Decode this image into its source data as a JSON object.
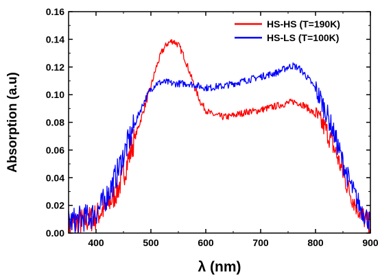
{
  "chart_data": {
    "type": "line",
    "title": "",
    "xlabel": "λ (nm)",
    "ylabel": "Absorption (a.u)",
    "xlim": [
      350,
      900
    ],
    "ylim": [
      0.0,
      0.16
    ],
    "x_ticks": [
      "400",
      "500",
      "600",
      "700",
      "800",
      "900"
    ],
    "y_ticks": [
      "0.00",
      "0.02",
      "0.04",
      "0.06",
      "0.08",
      "0.10",
      "0.12",
      "0.14",
      "0.16"
    ],
    "grid": false,
    "legend_position": "top-right",
    "series": [
      {
        "name": "HS-HS (T=190K)",
        "color": "#ff0000",
        "x": [
          350,
          370,
          390,
          400,
          410,
          420,
          430,
          440,
          450,
          460,
          470,
          480,
          490,
          500,
          510,
          520,
          530,
          540,
          550,
          560,
          570,
          580,
          590,
          600,
          610,
          620,
          630,
          640,
          650,
          660,
          670,
          680,
          690,
          700,
          710,
          720,
          730,
          740,
          750,
          760,
          770,
          780,
          790,
          800,
          810,
          820,
          830,
          840,
          850,
          860,
          870,
          880,
          890,
          900
        ],
        "y": [
          0.005,
          0.008,
          0.01,
          0.012,
          0.016,
          0.02,
          0.025,
          0.032,
          0.042,
          0.055,
          0.068,
          0.08,
          0.093,
          0.106,
          0.12,
          0.131,
          0.137,
          0.139,
          0.136,
          0.128,
          0.117,
          0.105,
          0.095,
          0.089,
          0.086,
          0.085,
          0.084,
          0.084,
          0.085,
          0.086,
          0.087,
          0.088,
          0.088,
          0.089,
          0.09,
          0.091,
          0.092,
          0.093,
          0.094,
          0.095,
          0.094,
          0.092,
          0.089,
          0.085,
          0.08,
          0.074,
          0.065,
          0.055,
          0.043,
          0.032,
          0.023,
          0.016,
          0.01,
          0.005
        ]
      },
      {
        "name": "HS-LS (T=100K)",
        "color": "#0000ff",
        "x": [
          350,
          370,
          390,
          400,
          410,
          420,
          430,
          440,
          450,
          460,
          470,
          480,
          490,
          500,
          510,
          520,
          530,
          540,
          550,
          560,
          570,
          580,
          590,
          600,
          610,
          620,
          630,
          640,
          650,
          660,
          670,
          680,
          690,
          700,
          710,
          720,
          730,
          740,
          750,
          760,
          770,
          780,
          790,
          800,
          810,
          820,
          830,
          840,
          850,
          860,
          870,
          880,
          890,
          900
        ],
        "y": [
          0.008,
          0.01,
          0.012,
          0.015,
          0.02,
          0.027,
          0.035,
          0.045,
          0.056,
          0.067,
          0.078,
          0.088,
          0.097,
          0.104,
          0.108,
          0.109,
          0.109,
          0.108,
          0.108,
          0.108,
          0.108,
          0.107,
          0.106,
          0.105,
          0.105,
          0.106,
          0.106,
          0.107,
          0.108,
          0.109,
          0.11,
          0.111,
          0.112,
          0.113,
          0.114,
          0.115,
          0.116,
          0.118,
          0.12,
          0.121,
          0.119,
          0.115,
          0.11,
          0.104,
          0.096,
          0.087,
          0.076,
          0.064,
          0.051,
          0.039,
          0.029,
          0.02,
          0.013,
          0.008
        ]
      }
    ]
  }
}
